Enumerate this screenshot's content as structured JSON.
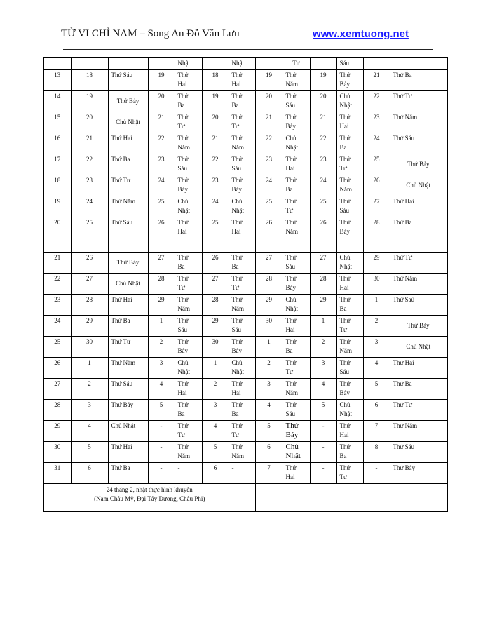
{
  "header": {
    "title": "TỬ VI CHỈ NAM – Song An Đỗ Văn Lưu",
    "website": "www.xemtuong.net"
  },
  "table": {
    "top_row": [
      "",
      "",
      "",
      "",
      "Nhật",
      "",
      "Nhật",
      "",
      "Tư",
      "",
      "Sáu",
      "",
      ""
    ],
    "rows_a": [
      [
        "13",
        "18",
        "Thứ  Sáu",
        "19",
        "Thứ\nHai",
        "18",
        "Thứ\nHai",
        "19",
        "Thứ\nNăm",
        "19",
        "Thứ\nBảy",
        "21",
        "Thứ Ba"
      ],
      [
        "14",
        "19",
        "Thứ Bảy",
        "20",
        "Thứ\nBa",
        "19",
        "Thứ\nBa",
        "20",
        "Thứ\nSáu",
        "20",
        "Chủ\nNhật",
        "22",
        "Thứ Tư"
      ],
      [
        "15",
        "20",
        "Chủ Nhật",
        "21",
        "Thứ\nTư",
        "20",
        "Thứ\nTư",
        "21",
        "Thứ\nBảy",
        "21",
        "Thứ\nHai",
        "23",
        "Thứ Năm"
      ],
      [
        "16",
        "21",
        "Thứ Hai",
        "22",
        "Thứ\nNăm",
        "21",
        "Thứ\nNăm",
        "22",
        "Chủ\nNhật",
        "22",
        "Thứ\nBa",
        "24",
        "Thứ  Sáu"
      ],
      [
        "17",
        "22",
        "Thứ Ba",
        "23",
        "Thứ\nSáu",
        "22",
        "Thứ\nSáu",
        "23",
        "Thứ\nHai",
        "23",
        "Thứ\nTư",
        "25",
        "Thứ Bảy"
      ],
      [
        "18",
        "23",
        "Thứ Tư",
        "24",
        "Thứ\nBảy",
        "23",
        "Thứ\nBảy",
        "24",
        "Thứ\nBa",
        "24",
        "Thứ\nNăm",
        "26",
        "Chủ Nhật"
      ],
      [
        "19",
        "24",
        "Thứ Năm",
        "25",
        "Chủ\nNhật",
        "24",
        "Chủ\nNhật",
        "25",
        "Thứ\nTư",
        "25",
        "Thứ\nSáu",
        "27",
        "Thứ Hai"
      ],
      [
        "20",
        "25",
        "Thứ  Sáu",
        "26",
        "Thứ\nHai",
        "25",
        "Thứ\nHai",
        "26",
        "Thứ\nNăm",
        "26",
        "Thứ\nBảy",
        "28",
        "Thứ Ba"
      ]
    ],
    "rows_b": [
      [
        "21",
        "26",
        "Thứ  Bảy",
        "27",
        "Thứ\nBa",
        "26",
        "Thứ\nBa",
        "27",
        "Thứ\nSáu",
        "27",
        "Chủ\nNhật",
        "29",
        "Thứ Tư"
      ],
      [
        "22",
        "27",
        "Chủ Nhật",
        "28",
        "Thứ\nTư",
        "27",
        "Thứ\nTư",
        "28",
        "Thứ\nBảy",
        "28",
        "Thứ\nHai",
        "30",
        "Thứ  Năm"
      ],
      [
        "23",
        "28",
        "Thứ  Hai",
        "29",
        "Thứ\nNăm",
        "28",
        "Thứ\nNăm",
        "29",
        "Chủ\nNhật",
        "29",
        "Thứ\nBa",
        "1",
        "Thứ  Saú"
      ],
      [
        "24",
        "29",
        "Thứ Ba",
        "1",
        "Thứ\nSáu",
        "29",
        "Thứ\nSáu",
        "30",
        "Thứ\nHai",
        "1",
        "Thứ\nTư",
        "2",
        "Thứ Bảy"
      ],
      [
        "25",
        "30",
        "Thứ Tư",
        "2",
        "Thứ\nBảy",
        "30",
        "Thứ\nBảy",
        "1",
        "Thứ\nBa",
        "2",
        "Thứ\nNăm",
        "3",
        "Chủ Nhật"
      ],
      [
        "26",
        "1",
        "Thứ Năm",
        "3",
        "Chủ\nNhật",
        "1",
        "Chủ\nNhật",
        "2",
        "Thứ\nTư",
        "3",
        "Thứ\nSáu",
        "4",
        "Thứ Hai"
      ],
      [
        "27",
        "2",
        "Thứ  Sáu",
        "4",
        "Thứ\nHai",
        "2",
        "Thứ\nHai",
        "3",
        "Thứ\nNăm",
        "4",
        "Thứ\nBảy",
        "5",
        "Thứ Ba"
      ],
      [
        "28",
        "3",
        "Thứ Bảy",
        "5",
        "Thứ\nBa",
        "3",
        "Thứ\nBa",
        "4",
        "Thứ\nSáu",
        "5",
        "Chủ\nNhật",
        "6",
        "Thứ Tư"
      ],
      [
        "29",
        "4",
        "Chủ Nhật",
        "-",
        "Thứ\nTư",
        "4",
        "Thứ\nTư",
        "5",
        "Thứ\nBảy",
        "-",
        "Thứ\nHai",
        "7",
        "Thứ Năm"
      ],
      [
        "30",
        "5",
        "Thứ Hai",
        "-",
        "Thứ\nNăm",
        "5",
        "Thứ\nNăm",
        "6",
        "Chủ\nNhật",
        "-",
        "Thứ\nBa",
        "8",
        "Thứ Sáu"
      ],
      [
        "31",
        "6",
        "Thứ  Ba",
        "-",
        "-",
        "6",
        "-",
        "7",
        "Thứ\nHai",
        "-",
        "Thứ\nTư",
        "-",
        "Thứ  Bảy"
      ]
    ],
    "footnote": "24 tháng 2, nhật thực hình khuyên\n(Nam Châu Mỹ, Đại Tây Dương, Châu Phi)"
  }
}
